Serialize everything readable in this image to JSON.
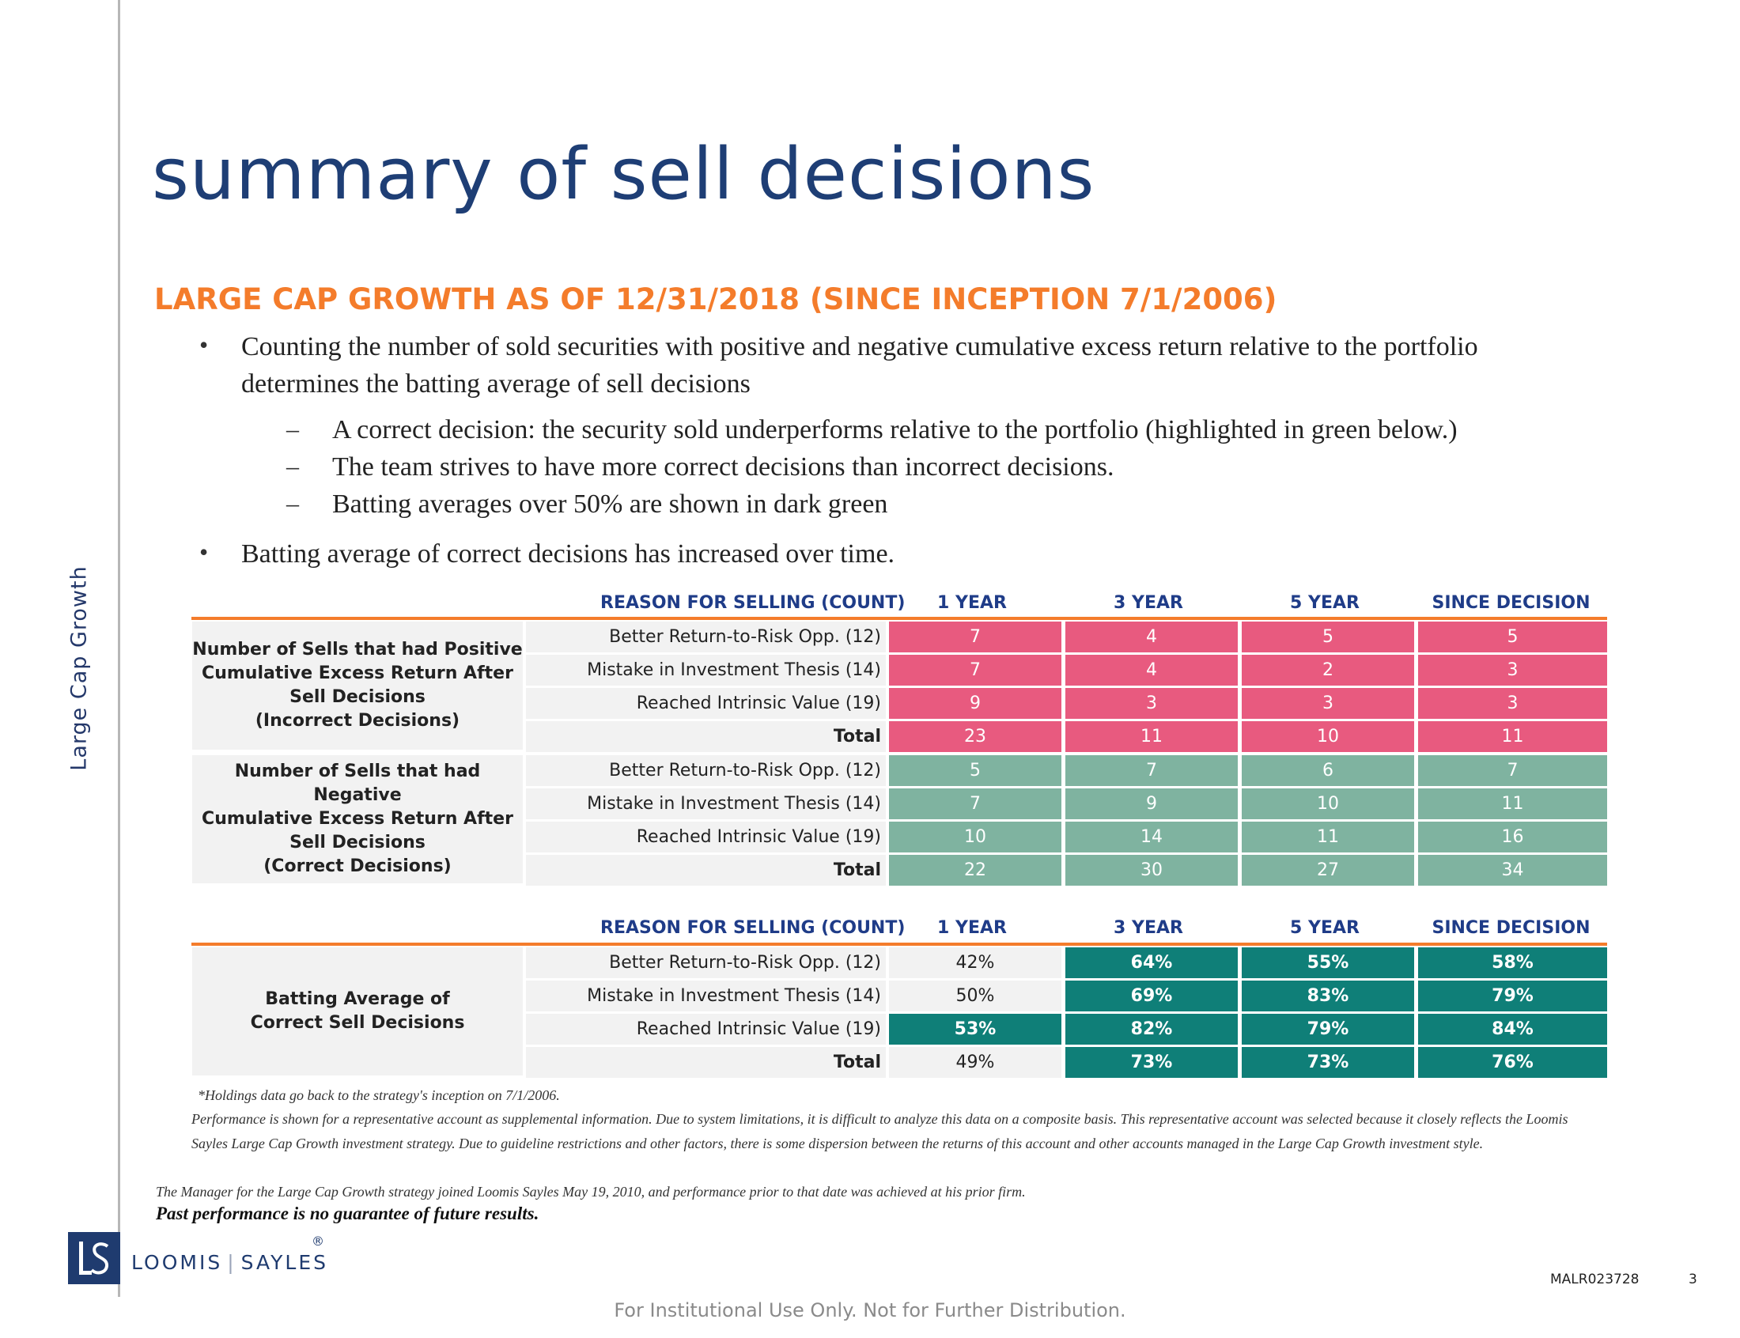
{
  "side_label": "Large Cap Growth",
  "title": "summary of sell decisions",
  "subtitle": "LARGE CAP GROWTH AS OF 12/31/2018 (SINCE INCEPTION 7/1/2006)",
  "bullets": [
    {
      "line1": "Counting the number of sold securities with positive and negative cumulative excess return relative to the portfolio",
      "line2": "determines the batting average of sell decisions"
    },
    {
      "line1": "Batting average of correct decisions has increased over time."
    }
  ],
  "sub_bullets": [
    "A correct decision:  the security sold underperforms relative to the portfolio (highlighted in green below.)",
    "The team strives to have more correct decisions than incorrect decisions.",
    "Batting averages over 50% are shown in dark green"
  ],
  "table1": {
    "header": [
      "REASON FOR SELLING (COUNT)",
      "1 YEAR",
      "3 YEAR",
      "5 YEAR",
      "SINCE DECISION"
    ],
    "groups": [
      {
        "label_lines": [
          "Number of Sells that had Positive",
          "Cumulative Excess Return After",
          "Sell Decisions",
          "(Incorrect Decisions)"
        ],
        "rows": [
          {
            "reason": "Better Return-to-Risk Opp. (12)",
            "values": [
              "7",
              "4",
              "5",
              "5"
            ]
          },
          {
            "reason": "Mistake in Investment Thesis (14)",
            "values": [
              "7",
              "4",
              "2",
              "3"
            ]
          },
          {
            "reason": "Reached Intrinsic Value (19)",
            "values": [
              "9",
              "3",
              "3",
              "3"
            ]
          },
          {
            "reason": "Total",
            "values": [
              "23",
              "11",
              "10",
              "11"
            ]
          }
        ]
      },
      {
        "label_lines": [
          "Number of Sells that had Negative",
          "Cumulative Excess Return After",
          "Sell Decisions",
          "(Correct Decisions)"
        ],
        "rows": [
          {
            "reason": "Better Return-to-Risk Opp. (12)",
            "values": [
              "5",
              "7",
              "6",
              "7"
            ]
          },
          {
            "reason": "Mistake in Investment Thesis (14)",
            "values": [
              "7",
              "9",
              "10",
              "11"
            ]
          },
          {
            "reason": "Reached Intrinsic Value (19)",
            "values": [
              "10",
              "14",
              "11",
              "16"
            ]
          },
          {
            "reason": "Total",
            "values": [
              "22",
              "30",
              "27",
              "34"
            ]
          }
        ]
      }
    ]
  },
  "table2": {
    "header": [
      "REASON FOR SELLING (COUNT)",
      "1 YEAR",
      "3 YEAR",
      "5 YEAR",
      "SINCE DECISION"
    ],
    "label_lines": [
      "Batting Average of",
      "Correct Sell Decisions"
    ],
    "rows": [
      {
        "reason": "Better Return-to-Risk Opp. (12)",
        "values": [
          "42%",
          "64%",
          "55%",
          "58%"
        ]
      },
      {
        "reason": "Mistake in Investment Thesis (14)",
        "values": [
          "50%",
          "69%",
          "83%",
          "79%"
        ]
      },
      {
        "reason": "Reached Intrinsic Value (19)",
        "values": [
          "53%",
          "82%",
          "79%",
          "84%"
        ]
      },
      {
        "reason": "Total",
        "values": [
          "49%",
          "73%",
          "73%",
          "76%"
        ]
      }
    ]
  },
  "colors": {
    "incorrect": "#e85a7f",
    "correct": "#7fb3a0",
    "above_50": "#0f7f78",
    "accent": "#f47c2b",
    "title": "#1e3e75"
  },
  "notes": {
    "holdings": "*Holdings data go back to the strategy's inception on 7/1/2006.",
    "performance": "Performance is shown for a representative account as supplemental information. Due to system limitations, it is difficult to analyze this data on a composite basis. This representative account was selected because it closely reflects the Loomis Sayles Large Cap Growth investment strategy. Due to guideline restrictions and other factors, there is some dispersion between the returns of this account and other accounts managed in the Large Cap Growth investment style.",
    "manager": "The Manager for the Large Cap Growth strategy joined Loomis Sayles May 19, 2010, and performance prior to that date was achieved at his prior firm.",
    "past": "Past performance is no guarantee of future results."
  },
  "logo": {
    "left": "LOOMIS",
    "right": "SAYLES",
    "mark": "®"
  },
  "doc_code": "MALR023728",
  "page_number": "3",
  "footer": "For Institutional Use Only. Not for Further Distribution."
}
